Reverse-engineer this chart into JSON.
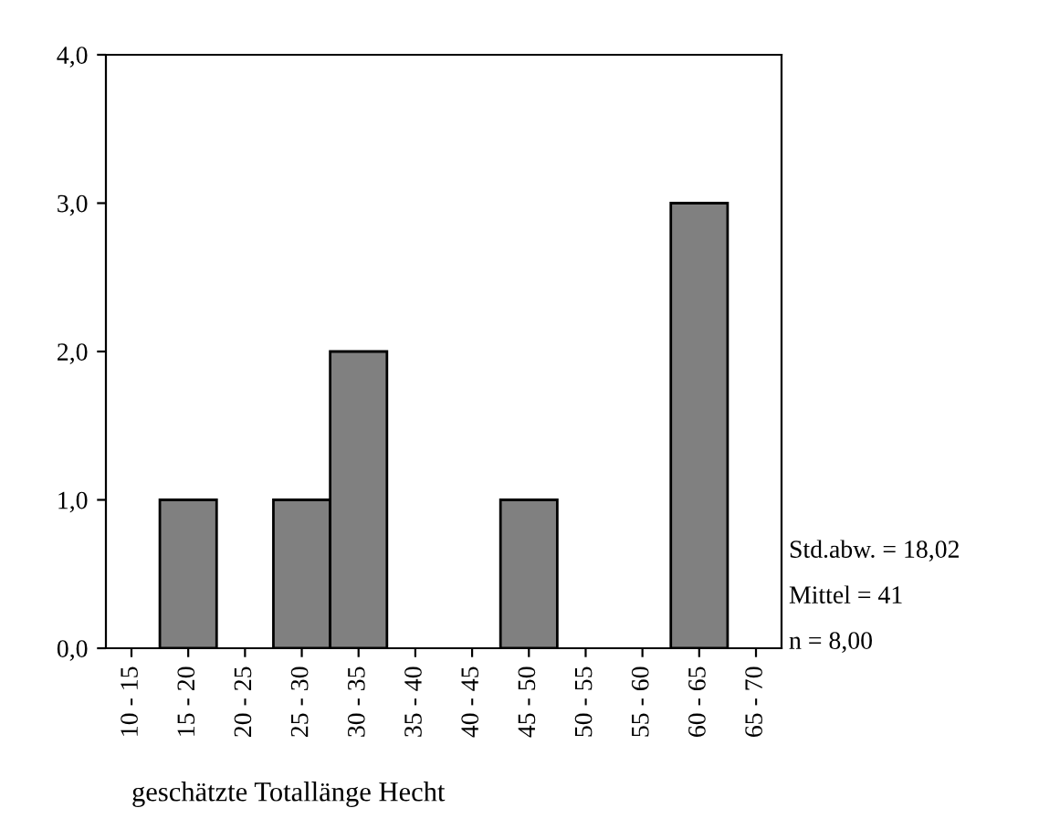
{
  "chart_data": {
    "type": "bar",
    "xlabel": "geschätzte Totallänge Hecht",
    "categories": [
      "10 - 15",
      "15 - 20",
      "20 - 25",
      "25 - 30",
      "30 - 35",
      "35 - 40",
      "40 - 45",
      "45 - 50",
      "50 - 55",
      "55 - 60",
      "60 - 65",
      "65 - 70"
    ],
    "values": [
      0,
      1,
      0,
      1,
      2,
      0,
      0,
      1,
      0,
      0,
      3,
      0
    ],
    "color": "#808080",
    "ylim": [
      0,
      4
    ],
    "yticks": [
      {
        "value": 0,
        "label": "0,0"
      },
      {
        "value": 1,
        "label": "1,0"
      },
      {
        "value": 2,
        "label": "2,0"
      },
      {
        "value": 3,
        "label": "3,0"
      },
      {
        "value": 4,
        "label": "4,0"
      }
    ],
    "grid": false,
    "legend": false,
    "annotations": [
      "Std.abw. = 18,02",
      "Mittel = 41",
      "n = 8,00"
    ]
  }
}
